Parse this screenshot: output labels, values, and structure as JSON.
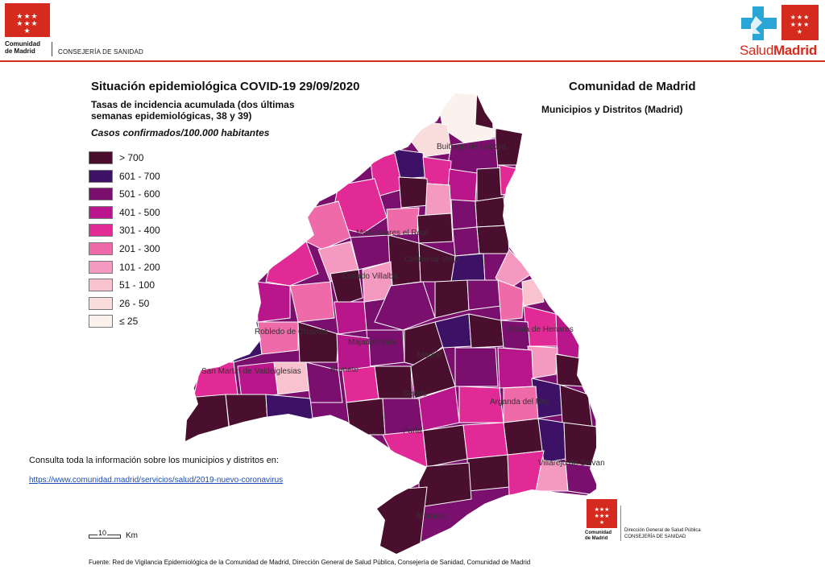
{
  "header": {
    "cm_logo_line1": "Comunidad",
    "cm_logo_line2": "de Madrid",
    "consejeria": "CONSEJERÍA DE SANIDAD",
    "salud_part1": "Salud",
    "salud_part2": "Madrid",
    "brand_red": "#d52b1e",
    "cross_blue": "#2aa6d6"
  },
  "title": "Situación epidemiológica COVID-19  29/09/2020",
  "subtitle_line1": "Tasas de incidencia acumulada (dos últimas",
  "subtitle_line2": "semanas epidemiológicas, 38 y 39)",
  "casos": "Casos confirmados/100.000 habitantes",
  "region_title": "Comunidad de Madrid",
  "region_subtitle": "Municipios y Distritos (Madrid)",
  "legend": [
    {
      "label": "> 700",
      "color": "#4a0f2e"
    },
    {
      "label": "601 - 700",
      "color": "#3d1266"
    },
    {
      "label": "501 - 600",
      "color": "#7a0f6e"
    },
    {
      "label": "401 - 500",
      "color": "#b8168a"
    },
    {
      "label": "301 - 400",
      "color": "#e22a96"
    },
    {
      "label": "201 - 300",
      "color": "#ee6aa8"
    },
    {
      "label": "101 - 200",
      "color": "#f49ac0"
    },
    {
      "label": "51 - 100",
      "color": "#f8c2cf"
    },
    {
      "label": "26 - 50",
      "color": "#f9dcdc"
    },
    {
      "label": "≤ 25",
      "color": "#fbf2ee"
    }
  ],
  "places": [
    "Buitrago de Lozoya",
    "Manzanares el Real",
    "Colmenar Viejo",
    "Collado Villalba",
    "Robledo de Chavela",
    "San Martín de Valdeiglesias",
    "Majadahonda",
    "Brunete",
    "Madrid",
    "Alcalá de Henares",
    "Getafe",
    "Arganda del Rey",
    "Parla",
    "Villarejo de Salvanés",
    "Aranjuez"
  ],
  "consulta": "Consulta toda la información sobre los municipios y distritos en:",
  "link": "https://www.comunidad.madrid/servicios/salud/2019-nuevo-coronavirus",
  "scale": {
    "value": "10",
    "unit": "Km"
  },
  "footer_logo": {
    "line1": "Comunidad",
    "line2": "de Madrid",
    "dg_line1": "Dirección General de Salud Pública",
    "dg_line2": "CONSEJERÍA DE SANIDAD"
  },
  "fuente": "Fuente: Red de Vigilancia Epidemiológica de la Comunidad de Madrid, Dirección General de Salud Pública, Consejería de Sanidad, Comunidad de Madrid"
}
